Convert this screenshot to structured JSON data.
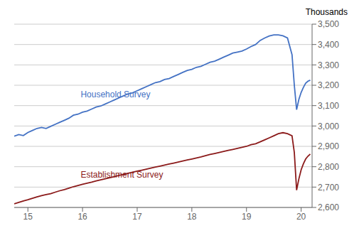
{
  "chart_data": {
    "type": "line",
    "title": "Thousands",
    "x": [
      14.75,
      14.833,
      14.917,
      15.0,
      15.083,
      15.167,
      15.25,
      15.333,
      15.417,
      15.5,
      15.583,
      15.667,
      15.75,
      15.833,
      15.917,
      16.0,
      16.083,
      16.167,
      16.25,
      16.333,
      16.417,
      16.5,
      16.583,
      16.667,
      16.75,
      16.833,
      16.917,
      17.0,
      17.083,
      17.167,
      17.25,
      17.333,
      17.417,
      17.5,
      17.583,
      17.667,
      17.75,
      17.833,
      17.917,
      18.0,
      18.083,
      18.167,
      18.25,
      18.333,
      18.417,
      18.5,
      18.583,
      18.667,
      18.75,
      18.833,
      18.917,
      19.0,
      19.083,
      19.167,
      19.25,
      19.333,
      19.417,
      19.5,
      19.583,
      19.667,
      19.75,
      19.833,
      19.875,
      19.917,
      19.958,
      20.0,
      20.042,
      20.083,
      20.125,
      20.167
    ],
    "series": [
      {
        "name": "Household Survey",
        "color": "#4472C4",
        "values": [
          2950,
          2958,
          2953,
          2968,
          2978,
          2988,
          2993,
          2988,
          2998,
          3008,
          3018,
          3028,
          3038,
          3053,
          3058,
          3068,
          3073,
          3083,
          3093,
          3098,
          3108,
          3118,
          3128,
          3138,
          3148,
          3158,
          3163,
          3173,
          3183,
          3193,
          3203,
          3213,
          3218,
          3228,
          3233,
          3243,
          3253,
          3263,
          3273,
          3278,
          3288,
          3293,
          3303,
          3313,
          3318,
          3328,
          3338,
          3348,
          3358,
          3363,
          3368,
          3378,
          3390,
          3400,
          3420,
          3432,
          3442,
          3447,
          3447,
          3443,
          3432,
          3350,
          3200,
          3080,
          3130,
          3165,
          3190,
          3210,
          3220,
          3225
        ]
      },
      {
        "name": "Establishment Survey",
        "color": "#8B1A1A",
        "values": [
          2618,
          2625,
          2632,
          2638,
          2645,
          2652,
          2658,
          2663,
          2668,
          2675,
          2682,
          2688,
          2695,
          2702,
          2708,
          2714,
          2719,
          2724,
          2730,
          2736,
          2741,
          2746,
          2751,
          2757,
          2763,
          2768,
          2773,
          2778,
          2783,
          2788,
          2793,
          2798,
          2803,
          2808,
          2813,
          2818,
          2823,
          2828,
          2833,
          2838,
          2843,
          2848,
          2854,
          2860,
          2865,
          2870,
          2875,
          2880,
          2885,
          2890,
          2895,
          2900,
          2908,
          2913,
          2922,
          2932,
          2942,
          2952,
          2962,
          2967,
          2962,
          2952,
          2870,
          2685,
          2740,
          2785,
          2815,
          2838,
          2852,
          2862
        ]
      }
    ],
    "annotations": [
      {
        "text": "Household Survey",
        "x": 15.9,
        "y": 3155,
        "color": "#4472C4"
      },
      {
        "text": "Establishment Survey",
        "x": 15.9,
        "y": 2760,
        "color": "#8B1A1A"
      }
    ],
    "xlim": [
      14.75,
      20.2
    ],
    "ylim": [
      2600,
      3500
    ],
    "xticks": [
      15,
      16,
      17,
      18,
      19,
      20
    ],
    "yticks": [
      {
        "value": 2600,
        "label": "2,600"
      },
      {
        "value": 2700,
        "label": "2,700"
      },
      {
        "value": 2800,
        "label": "2,800"
      },
      {
        "value": 2900,
        "label": "2,900"
      },
      {
        "value": 3000,
        "label": "3,000"
      },
      {
        "value": 3100,
        "label": "3,100"
      },
      {
        "value": 3200,
        "label": "3,200"
      },
      {
        "value": 3300,
        "label": "3,300"
      },
      {
        "value": 3400,
        "label": "3,400"
      },
      {
        "value": 3500,
        "label": "3,500"
      }
    ],
    "grid": true
  }
}
